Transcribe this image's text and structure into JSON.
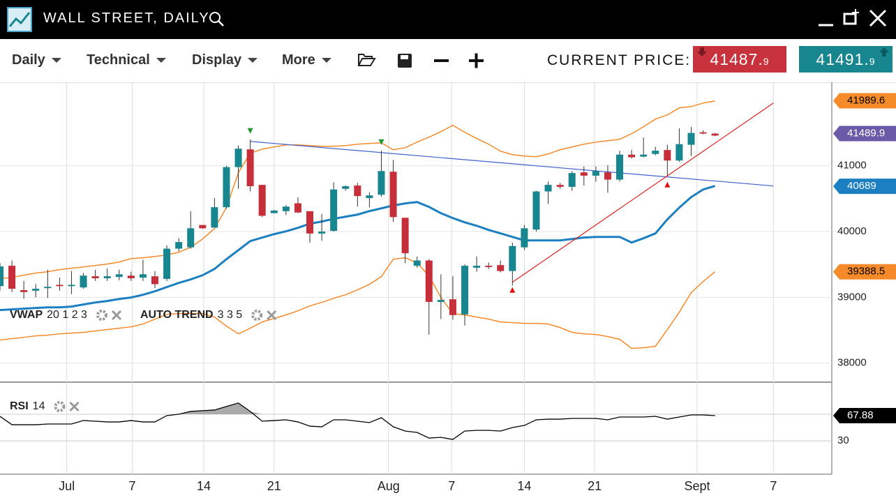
{
  "header": {
    "title": "WALL STREET, DAILY"
  },
  "toolbar": {
    "menus": [
      "Daily",
      "Technical",
      "Display",
      "More"
    ],
    "price_label": "CURRENT PRICE:",
    "sell": 41487.9,
    "buy": 41491.9
  },
  "chart_data": [
    {
      "type": "candlestick",
      "xlim": [
        0,
        69.8
      ],
      "xticks": [
        {
          "value": 5.6,
          "label": "Jul"
        },
        {
          "value": 11.1,
          "label": "7"
        },
        {
          "value": 17.1,
          "label": "14"
        },
        {
          "value": 23.0,
          "label": "21"
        },
        {
          "value": 32.6,
          "label": "Aug"
        },
        {
          "value": 37.9,
          "label": "7"
        },
        {
          "value": 44.0,
          "label": "14"
        },
        {
          "value": 49.9,
          "label": "21"
        },
        {
          "value": 58.5,
          "label": "Sept"
        },
        {
          "value": 64.9,
          "label": "7"
        }
      ],
      "ylim": [
        37710,
        42270
      ],
      "yticks": [
        38000,
        39000,
        40000,
        41000
      ],
      "grid": true,
      "up_color": "#17868f",
      "down_color": "#c62f3a",
      "open": [
        39170,
        39480,
        39110,
        39100,
        39140,
        39190,
        39170,
        39150,
        39320,
        39290,
        39310,
        39330,
        39300,
        39320,
        39280,
        39740,
        39760,
        40100,
        40060,
        40370,
        40980,
        41250,
        40710,
        40280,
        40310,
        40430,
        40310,
        39970,
        40010,
        40650,
        40700,
        40510,
        40560,
        40910,
        40210,
        39480,
        39560,
        38930,
        38970,
        38740,
        39450,
        39480,
        39490,
        39400,
        39760,
        40030,
        40610,
        40710,
        40680,
        40900,
        40850,
        40900,
        40790,
        41170,
        41140,
        41180,
        41240,
        41080,
        41320,
        41510,
        41490
      ],
      "high": [
        39520,
        39560,
        39250,
        39200,
        39420,
        39300,
        39400,
        39370,
        39420,
        39440,
        39420,
        39390,
        39570,
        39400,
        39790,
        39900,
        40310,
        40100,
        40510,
        41000,
        41310,
        41400,
        40710,
        40330,
        40400,
        40520,
        40310,
        40270,
        40750,
        40700,
        40740,
        40600,
        41230,
        41090,
        40210,
        39620,
        39580,
        39350,
        39320,
        39500,
        39620,
        39530,
        39560,
        39830,
        40100,
        40620,
        40760,
        40740,
        40920,
        40990,
        40990,
        41010,
        41230,
        41240,
        41430,
        41290,
        41320,
        41570,
        41590,
        41540,
        41500
      ],
      "low": [
        39100,
        39080,
        38980,
        39000,
        38990,
        39100,
        39050,
        39130,
        39250,
        39250,
        39260,
        39250,
        39250,
        39140,
        39250,
        39700,
        39740,
        40040,
        40060,
        40350,
        40650,
        40610,
        40220,
        40280,
        40250,
        40280,
        39830,
        39860,
        40000,
        40620,
        40380,
        40370,
        40530,
        40150,
        39520,
        39450,
        38430,
        38670,
        38660,
        38570,
        39390,
        39430,
        39380,
        39180,
        39720,
        40000,
        40420,
        40650,
        40620,
        40700,
        40760,
        40590,
        40760,
        41110,
        41130,
        41160,
        40850,
        41060,
        41150,
        41480,
        41450
      ],
      "close": [
        39470,
        39130,
        39080,
        39130,
        39160,
        39170,
        39190,
        39330,
        39290,
        39320,
        39350,
        39290,
        39350,
        39200,
        39740,
        39840,
        40050,
        40050,
        40370,
        40980,
        41260,
        40690,
        40240,
        40320,
        40380,
        40290,
        39970,
        40000,
        40640,
        40690,
        40540,
        40550,
        40920,
        40220,
        39670,
        39560,
        38930,
        38960,
        38730,
        39480,
        39480,
        39460,
        39400,
        39780,
        40050,
        40610,
        40710,
        40680,
        40890,
        40850,
        40920,
        40790,
        41170,
        41130,
        41170,
        41230,
        41080,
        41330,
        41500,
        41490,
        41460
      ],
      "overlays": [
        {
          "color": "#f58a2a",
          "width": 1.5,
          "values": [
            39283,
            39304,
            39336,
            39368,
            39389,
            39421,
            39442,
            39463,
            39484,
            39506,
            39537,
            39590,
            39601,
            39622,
            39643,
            39686,
            39760,
            39887,
            40046,
            40364,
            40894,
            41191,
            41254,
            41286,
            41318,
            41318,
            41307,
            41297,
            41297,
            41307,
            41329,
            41339,
            41350,
            41244,
            41275,
            41360,
            41435,
            41520,
            41615,
            41509,
            41414,
            41329,
            41222,
            41170,
            41148,
            41138,
            41180,
            41244,
            41286,
            41329,
            41360,
            41382,
            41403,
            41488,
            41594,
            41710,
            41774,
            41880,
            41901,
            41954,
            41986
          ]
        },
        {
          "color": "#f58a2a",
          "width": 1.5,
          "values": [
            38350,
            38371,
            38392,
            38414,
            38424,
            38445,
            38456,
            38467,
            38488,
            38509,
            38530,
            38551,
            38594,
            38668,
            38742,
            38753,
            38753,
            38753,
            38700,
            38562,
            38445,
            38530,
            38626,
            38679,
            38732,
            38795,
            38869,
            38922,
            38986,
            39039,
            39113,
            39198,
            39315,
            39580,
            39601,
            39527,
            39325,
            38997,
            38753,
            38732,
            38700,
            38668,
            38626,
            38615,
            38604,
            38604,
            38594,
            38541,
            38467,
            38445,
            38435,
            38403,
            38361,
            38223,
            38234,
            38255,
            38509,
            38774,
            39070,
            39240,
            39389
          ]
        },
        {
          "color": "#1b7fc1",
          "width": 3,
          "values": [
            38806,
            38817,
            38827,
            38838,
            38848,
            38848,
            38859,
            38891,
            38922,
            38944,
            38975,
            38997,
            39039,
            39092,
            39156,
            39219,
            39272,
            39336,
            39431,
            39580,
            39717,
            39855,
            39908,
            39961,
            40004,
            40057,
            40120,
            40152,
            40195,
            40226,
            40258,
            40311,
            40353,
            40396,
            40428,
            40449,
            40375,
            40279,
            40205,
            40141,
            40088,
            40025,
            39972,
            39919,
            39866,
            39866,
            39866,
            39866,
            39887,
            39909,
            39919,
            39919,
            39919,
            39834,
            39898,
            39972,
            40184,
            40364,
            40524,
            40640,
            40693
          ]
        }
      ],
      "trend_lines": [
        {
          "color": "#3f5fcc",
          "x": [
            21,
            64.9
          ],
          "y": [
            41371,
            40693
          ]
        },
        {
          "color": "#e02020",
          "x": [
            43,
            64.9
          ],
          "y": [
            39230,
            41954
          ]
        }
      ],
      "markers": [
        {
          "x": 21,
          "y": 41530,
          "color": "#1a9a2a",
          "dir": "down"
        },
        {
          "x": 32,
          "y": 41360,
          "color": "#1a9a2a",
          "dir": "down"
        },
        {
          "x": 43,
          "y": 39113,
          "color": "#e01010",
          "dir": "up"
        },
        {
          "x": 56,
          "y": 40714,
          "color": "#e01010",
          "dir": "up"
        }
      ],
      "price_labels": [
        {
          "value": 41989.6,
          "color": "#f58a2a",
          "text_color": "#000000"
        },
        {
          "value": 41489.9,
          "color": "#6a5aa8",
          "text_color": "#ffffff"
        },
        {
          "value": 40689,
          "color": "#1b7fc1",
          "text_color": "#ffffff"
        },
        {
          "value": 39388.5,
          "color": "#f58a2a",
          "text_color": "#000000"
        }
      ],
      "studies": [
        {
          "name": "VWAP",
          "params": "20 1 2 3"
        },
        {
          "name": "AUTO TREND",
          "params": "3 3 5"
        }
      ]
    },
    {
      "type": "line",
      "name": "RSI",
      "params": "14",
      "color": "#000000",
      "ylim": [
        -20,
        116
      ],
      "yticks": [
        30
      ],
      "overbought": 70,
      "overbought_fill": "#aaaaaa",
      "values": [
        66.8,
        54.2,
        54.2,
        54.2,
        55.3,
        55.3,
        55.3,
        60.5,
        59.5,
        58.4,
        58.4,
        60.5,
        58.4,
        58.4,
        67.9,
        70,
        74.2,
        75.3,
        76.3,
        81.6,
        86.8,
        74.2,
        59.5,
        60.5,
        61.6,
        58.4,
        52.1,
        51.1,
        61.6,
        61.6,
        59.5,
        57.4,
        64.7,
        51.1,
        44.7,
        42.6,
        34.2,
        35.3,
        32.1,
        44.7,
        45.8,
        45.8,
        44.7,
        50,
        53.2,
        61.6,
        62.6,
        62.6,
        63.7,
        63.7,
        63.7,
        61.6,
        65.8,
        65.8,
        65.8,
        66.8,
        62.6,
        65.8,
        68.9,
        68.9,
        67.9
      ],
      "last_value": 67.88
    }
  ]
}
